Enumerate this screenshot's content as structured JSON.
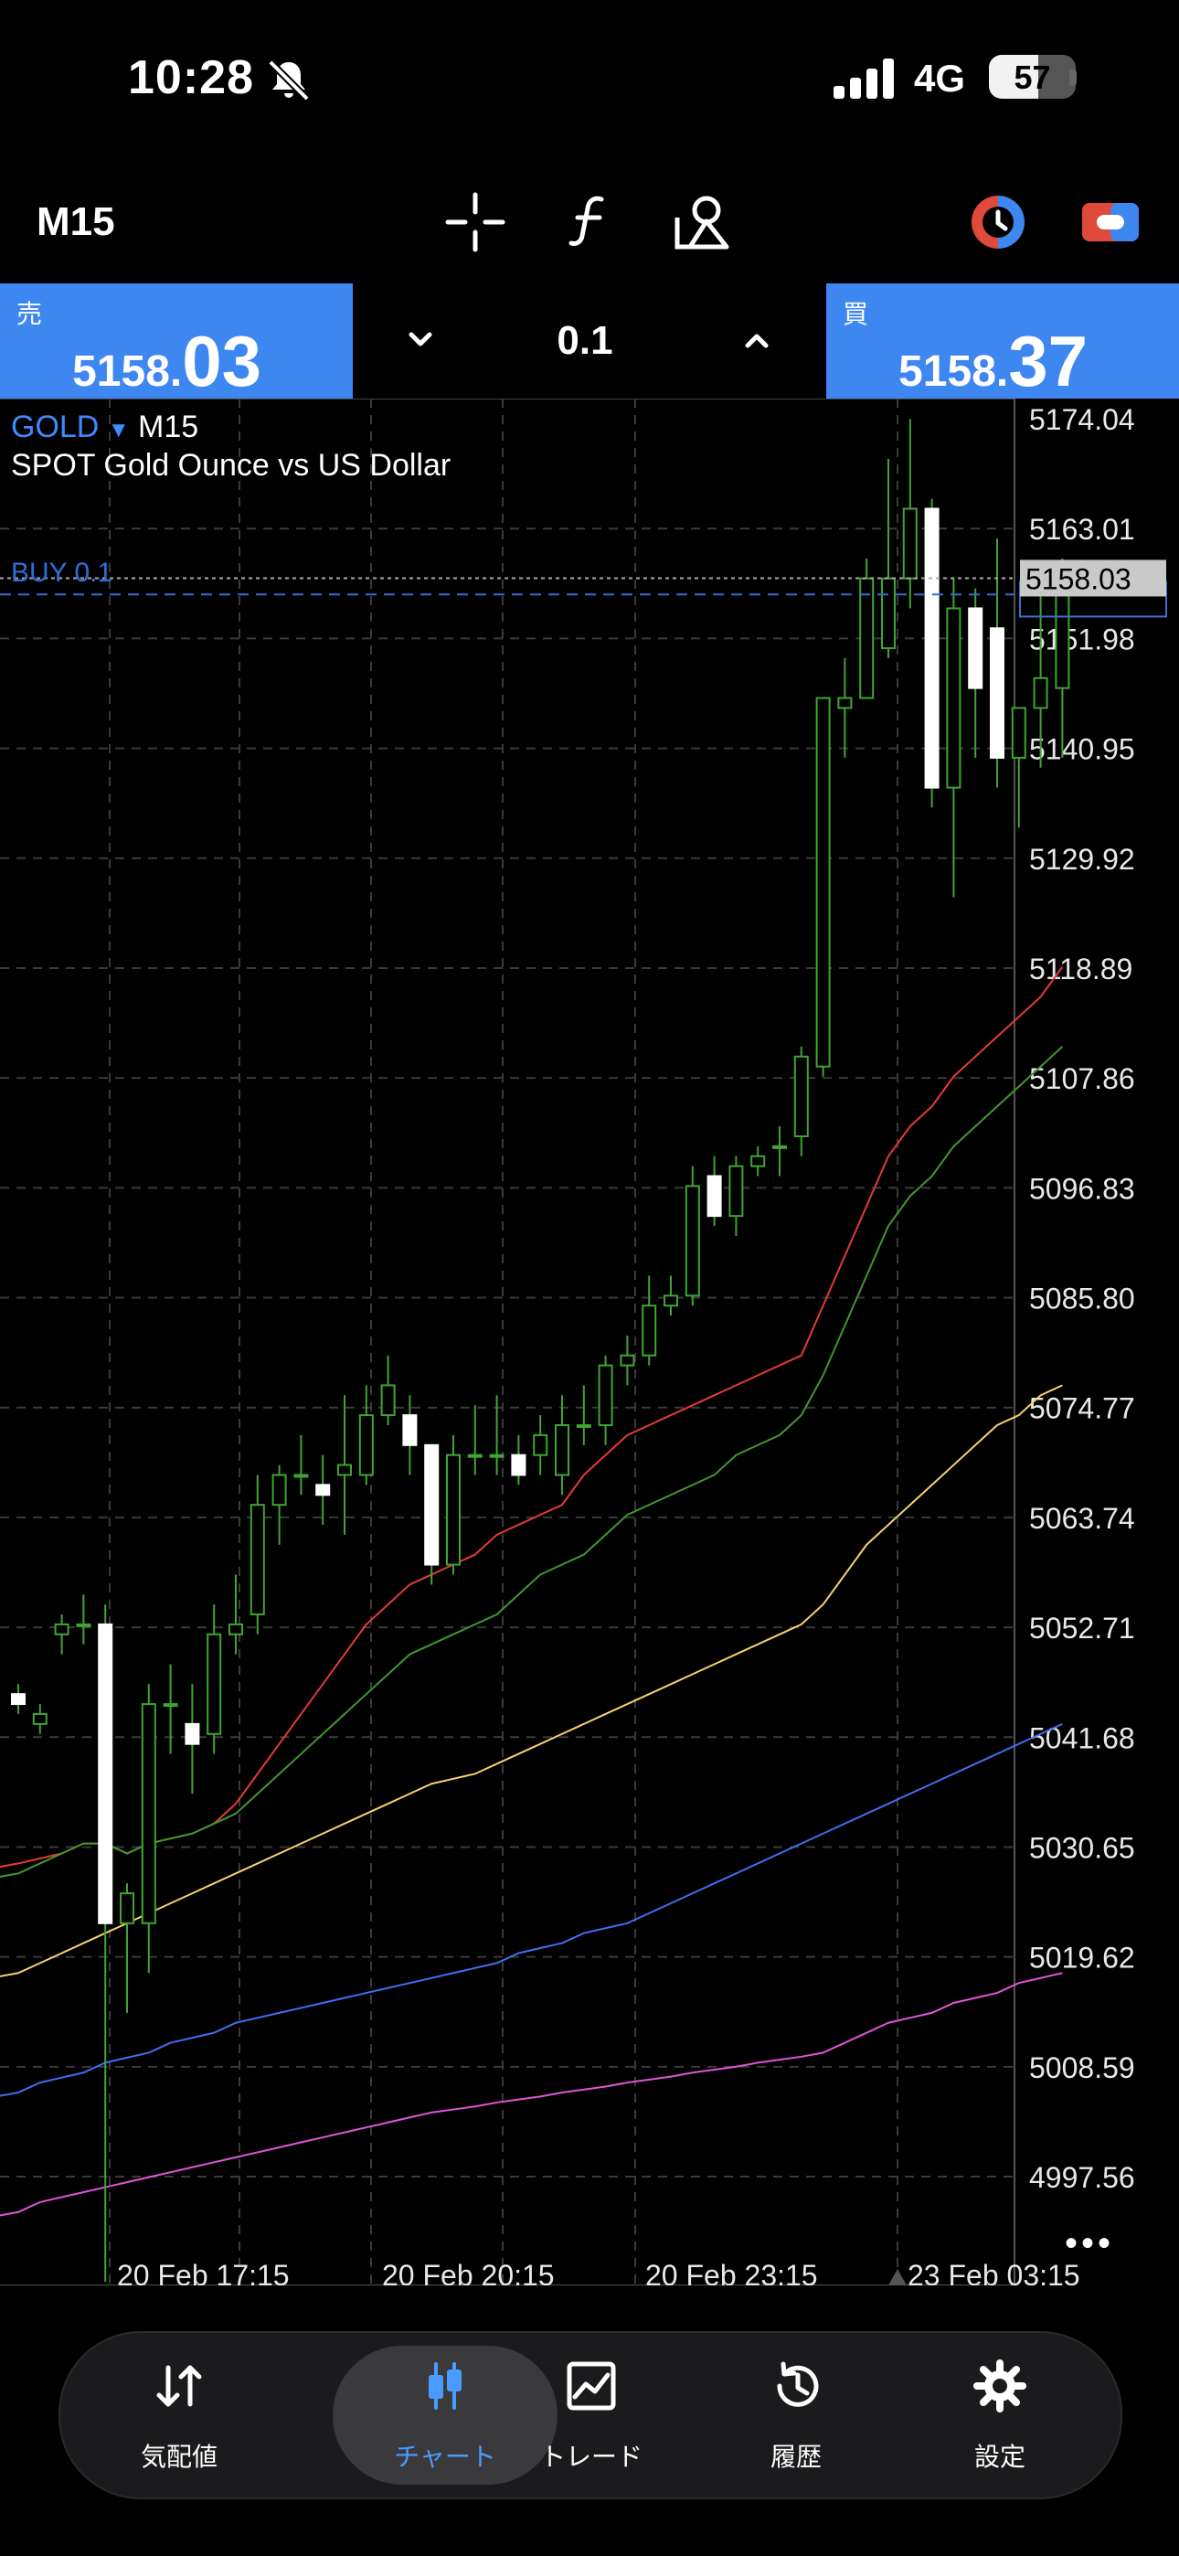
{
  "status": {
    "time": "10:28",
    "network": "4G",
    "battery": "57",
    "battery_level_percent": 57
  },
  "toolbar": {
    "timeframe": "M15",
    "icons": [
      "crosshair-icon",
      "indicator-f-icon",
      "objects-icon",
      "trade-history-icon",
      "one-click-trading-icon"
    ]
  },
  "trade": {
    "sell_label": "売",
    "sell_price_small": "5158.",
    "sell_price_big": "03",
    "buy_label": "買",
    "buy_price_small": "5158.",
    "buy_price_big": "37",
    "lot": "0.1"
  },
  "chart": {
    "symbol": "GOLD",
    "timeframe": "M15",
    "description": "SPOT Gold Ounce vs US Dollar",
    "position_label": "BUY 0.1",
    "current_price": "5158.03",
    "more_label": "•••"
  },
  "chart_data": {
    "type": "candlestick",
    "y_ticks": [
      "5174.04",
      "5163.01",
      "5151.98",
      "5140.95",
      "5129.92",
      "5118.89",
      "5107.86",
      "5096.83",
      "5085.80",
      "5074.77",
      "5063.74",
      "5052.71",
      "5041.68",
      "5030.65",
      "5019.62",
      "5008.59",
      "4997.56"
    ],
    "x_ticks": [
      "20 Feb 17:15",
      "20 Feb 20:15",
      "20 Feb 23:15",
      "23 Feb 03:15"
    ],
    "ylim": [
      4993.5,
      5176.5
    ],
    "position_price": 5156.4,
    "bid": 5158.03,
    "candles": [
      [
        5046,
        5045,
        5047,
        5044
      ],
      [
        5043,
        5044,
        5045,
        5042
      ],
      [
        5052,
        5053,
        5054,
        5050
      ],
      [
        5053,
        5053,
        5056,
        5051
      ],
      [
        5053,
        5023,
        5055,
        4987
      ],
      [
        5023,
        5026,
        5027,
        5014
      ],
      [
        5023,
        5045,
        5047,
        5018
      ],
      [
        5045,
        5045,
        5049,
        5040
      ],
      [
        5043,
        5041,
        5047,
        5036
      ],
      [
        5042,
        5052,
        5055,
        5040
      ],
      [
        5052,
        5053,
        5058,
        5050
      ],
      [
        5054,
        5065,
        5068,
        5052
      ],
      [
        5065,
        5068,
        5069,
        5061
      ],
      [
        5068,
        5068,
        5072,
        5066
      ],
      [
        5067,
        5066,
        5070,
        5063
      ],
      [
        5068,
        5069,
        5076,
        5062
      ],
      [
        5068,
        5074,
        5077,
        5067
      ],
      [
        5074,
        5077,
        5080,
        5073
      ],
      [
        5074,
        5071,
        5076,
        5068
      ],
      [
        5071,
        5059,
        5071,
        5057
      ],
      [
        5059,
        5070,
        5072,
        5058
      ],
      [
        5070,
        5070,
        5075,
        5068
      ],
      [
        5070,
        5070,
        5076,
        5068
      ],
      [
        5070,
        5068,
        5072,
        5067
      ],
      [
        5070,
        5072,
        5074,
        5068
      ],
      [
        5068,
        5073,
        5076,
        5066
      ],
      [
        5073,
        5073,
        5077,
        5071
      ],
      [
        5073,
        5079,
        5080,
        5071
      ],
      [
        5079,
        5080,
        5082,
        5077
      ],
      [
        5080,
        5085,
        5088,
        5079
      ],
      [
        5085,
        5086,
        5088,
        5084
      ],
      [
        5086,
        5097,
        5099,
        5085
      ],
      [
        5098,
        5094,
        5100,
        5093
      ],
      [
        5094,
        5099,
        5100,
        5092
      ],
      [
        5099,
        5100,
        5101,
        5098
      ],
      [
        5101,
        5101,
        5103,
        5098
      ],
      [
        5102,
        5110,
        5111,
        5100
      ],
      [
        5109,
        5146,
        5146,
        5108
      ],
      [
        5145,
        5146,
        5150,
        5140
      ],
      [
        5146,
        5158,
        5160,
        5146
      ],
      [
        5151,
        5158,
        5170,
        5150
      ],
      [
        5158,
        5165,
        5174,
        5155
      ],
      [
        5165,
        5137,
        5166,
        5135
      ],
      [
        5137,
        5155,
        5158,
        5126
      ],
      [
        5155,
        5147,
        5157,
        5140
      ],
      [
        5153,
        5140,
        5162,
        5137
      ],
      [
        5140,
        5145,
        5145,
        5133
      ],
      [
        5145,
        5148,
        5157,
        5139
      ],
      [
        5147,
        5158,
        5160,
        5140
      ]
    ],
    "moving_averages": [
      {
        "color": "#e53a34",
        "values": [
          5029,
          5029.5,
          5030,
          5031,
          5031,
          5030,
          5031,
          5031.5,
          5032,
          5033,
          5035,
          5038,
          5041,
          5044,
          5047,
          5050,
          5053,
          5055,
          5057,
          5058,
          5059,
          5060,
          5062,
          5063,
          5064,
          5065,
          5068,
          5070,
          5072,
          5073,
          5074,
          5075,
          5076,
          5077,
          5078,
          5079,
          5080,
          5085,
          5090,
          5095,
          5100,
          5103,
          5105,
          5108,
          5110,
          5112,
          5114,
          5116,
          5119
        ]
      },
      {
        "color": "#3e9a2c",
        "values": [
          5028,
          5029,
          5030,
          5031,
          5031,
          5030,
          5031,
          5031.5,
          5032,
          5033,
          5034,
          5036,
          5038,
          5040,
          5042,
          5044,
          5046,
          5048,
          5050,
          5051,
          5052,
          5053,
          5054,
          5056,
          5058,
          5059,
          5060,
          5062,
          5064,
          5065,
          5066,
          5067,
          5068,
          5070,
          5071,
          5072,
          5074,
          5078,
          5083,
          5088,
          5093,
          5096,
          5098,
          5101,
          5103,
          5105,
          5107,
          5109,
          5111
        ]
      },
      {
        "color": "#f7d26b",
        "values": [
          5018,
          5019,
          5020,
          5021,
          5022,
          5023,
          5024,
          5025,
          5026,
          5027,
          5028,
          5029,
          5030,
          5031,
          5032,
          5033,
          5034,
          5035,
          5036,
          5037,
          5037.5,
          5038,
          5039,
          5040,
          5041,
          5042,
          5043,
          5044,
          5045,
          5046,
          5047,
          5048,
          5049,
          5050,
          5051,
          5052,
          5053,
          5055,
          5058,
          5061,
          5063,
          5065,
          5067,
          5069,
          5071,
          5073,
          5074,
          5076,
          5077
        ]
      },
      {
        "color": "#3f6ef0",
        "values": [
          5006,
          5007,
          5007.5,
          5008,
          5009,
          5009.5,
          5010,
          5011,
          5011.5,
          5012,
          5013,
          5013.5,
          5014,
          5014.5,
          5015,
          5015.5,
          5016,
          5016.5,
          5017,
          5017.5,
          5018,
          5018.5,
          5019,
          5020,
          5020.5,
          5021,
          5022,
          5022.5,
          5023,
          5024,
          5025,
          5026,
          5027,
          5028,
          5029,
          5030,
          5031,
          5032,
          5033,
          5034,
          5035,
          5036,
          5037,
          5038,
          5039,
          5040,
          5041,
          5042,
          5043
        ]
      },
      {
        "color": "#e055d6",
        "values": [
          4994,
          4995,
          4995.5,
          4996,
          4996.5,
          4997,
          4997.5,
          4998,
          4998.5,
          4999,
          4999.5,
          5000,
          5000.5,
          5001,
          5001.5,
          5002,
          5002.5,
          5003,
          5003.5,
          5004,
          5004.3,
          5004.6,
          5005,
          5005.3,
          5005.6,
          5006,
          5006.3,
          5006.6,
          5007,
          5007.3,
          5007.6,
          5008,
          5008.3,
          5008.6,
          5009,
          5009.3,
          5009.6,
          5010,
          5011,
          5012,
          5013,
          5013.5,
          5014,
          5015,
          5015.5,
          5016,
          5017,
          5017.5,
          5018
        ]
      }
    ],
    "grid": true
  },
  "nav": {
    "items": [
      {
        "label": "気配値",
        "icon": "quotes-icon"
      },
      {
        "label": "チャート",
        "icon": "chart-candles-icon",
        "active": true
      },
      {
        "label": "トレード",
        "icon": "trade-icon"
      },
      {
        "label": "履歴",
        "icon": "history-icon"
      },
      {
        "label": "設定",
        "icon": "settings-icon"
      }
    ]
  },
  "colors": {
    "accent": "#3e86f0",
    "active_nav": "#4a9bff",
    "candle_up": "#3fa531",
    "candle_down": "#ffffff"
  }
}
